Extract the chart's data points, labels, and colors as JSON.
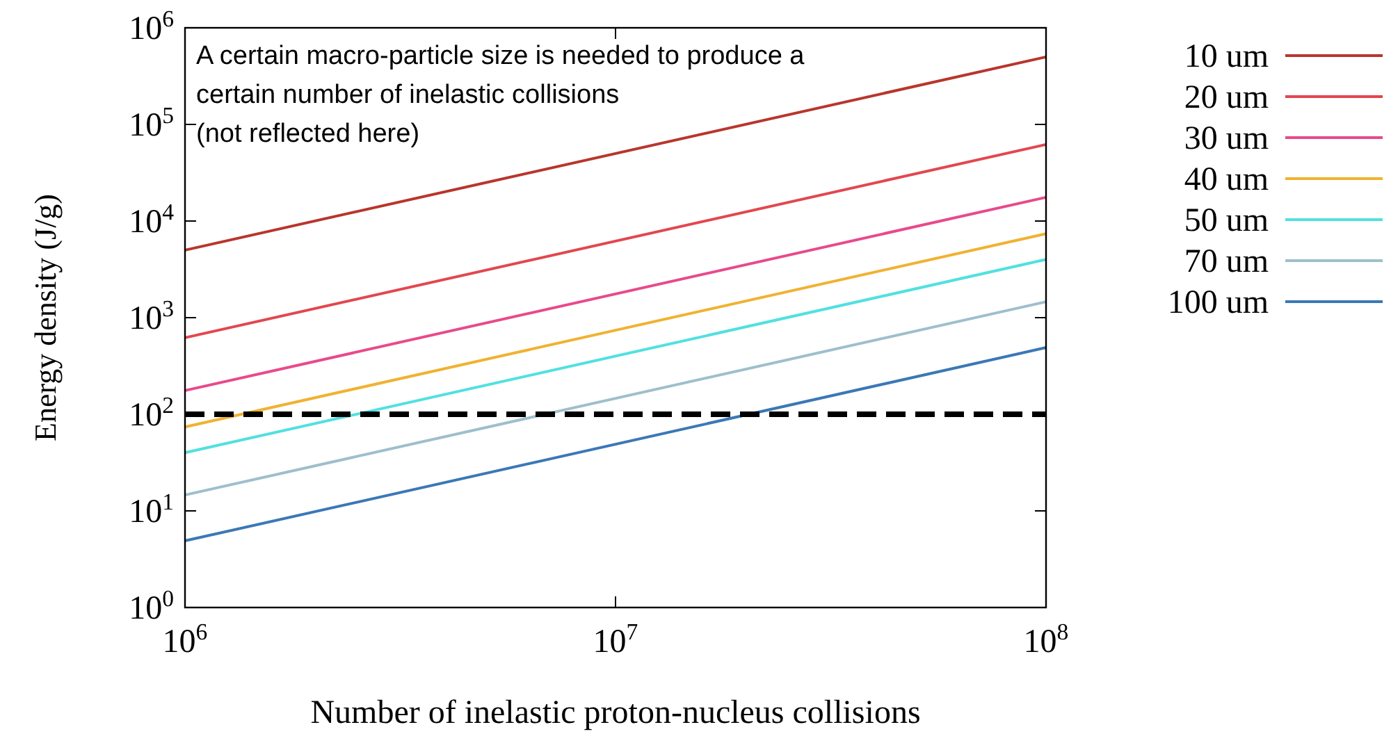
{
  "chart_data": {
    "type": "line",
    "xlabel": "Number of inelastic proton-nucleus collisions",
    "ylabel": "Energy density (J/g)",
    "log": "xy",
    "xlim": [
      1000000,
      100000000
    ],
    "ylim": [
      1,
      1000000
    ],
    "xticks": [
      {
        "value": 1000000,
        "label": "10$^{6}$"
      },
      {
        "value": 10000000,
        "label": "10$^{7}$"
      },
      {
        "value": 100000000,
        "label": "10$^{8}$"
      }
    ],
    "yticks": [
      {
        "value": 1,
        "label": "10$^{0}$"
      },
      {
        "value": 10,
        "label": "10$^{1}$"
      },
      {
        "value": 100,
        "label": "10$^{2}$"
      },
      {
        "value": 1000,
        "label": "10$^{3}$"
      },
      {
        "value": 10000,
        "label": "10$^{4}$"
      },
      {
        "value": 100000,
        "label": "10$^{5}$"
      },
      {
        "value": 1000000,
        "label": "10$^{6}$"
      }
    ],
    "x": [
      1000000,
      100000000
    ],
    "series": [
      {
        "name": "10 um",
        "color": "#b8362c",
        "values": [
          5000,
          500000
        ]
      },
      {
        "name": "20 um",
        "color": "#e2474f",
        "values": [
          620,
          62000
        ]
      },
      {
        "name": "30 um",
        "color": "#e84a8c",
        "values": [
          176,
          17600
        ]
      },
      {
        "name": "40 um",
        "color": "#f0b232",
        "values": [
          74,
          7400
        ]
      },
      {
        "name": "50 um",
        "color": "#52e0e0",
        "values": [
          40,
          4000
        ]
      },
      {
        "name": "70 um",
        "color": "#9ebfcc",
        "values": [
          14.6,
          1460
        ]
      },
      {
        "name": "100 um",
        "color": "#3b78b6",
        "values": [
          4.9,
          490
        ]
      }
    ],
    "ref_lines": [
      {
        "axis": "y",
        "value": 100,
        "color": "#000000",
        "line_style": "dashed"
      }
    ],
    "annotations": [
      "A certain macro-particle size is needed to produce a\ncertain number of inelastic collisions\n(not reflected here)"
    ],
    "legend": "right",
    "grid": false,
    "marker": "none",
    "line_style": "solid"
  }
}
